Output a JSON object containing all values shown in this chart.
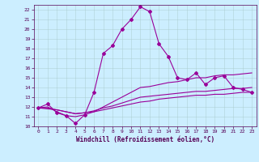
{
  "title": "",
  "xlabel": "Windchill (Refroidissement éolien,°C)",
  "bg_color": "#cceeff",
  "line_color": "#990099",
  "xlim": [
    -0.5,
    23.5
  ],
  "ylim": [
    10,
    22.5
  ],
  "yticks": [
    10,
    11,
    12,
    13,
    14,
    15,
    16,
    17,
    18,
    19,
    20,
    21,
    22
  ],
  "xticks": [
    0,
    1,
    2,
    3,
    4,
    5,
    6,
    7,
    8,
    9,
    10,
    11,
    12,
    13,
    14,
    15,
    16,
    17,
    18,
    19,
    20,
    21,
    22,
    23
  ],
  "series": [
    {
      "x": [
        0,
        1,
        2,
        3,
        4,
        5,
        6,
        7,
        8,
        9,
        10,
        11,
        12,
        13,
        14,
        15,
        16,
        17,
        18,
        19,
        20,
        21,
        22,
        23
      ],
      "y": [
        11.9,
        12.3,
        11.4,
        11.1,
        10.3,
        11.2,
        13.5,
        17.5,
        18.3,
        20.0,
        21.0,
        22.3,
        21.8,
        18.5,
        17.2,
        15.0,
        14.8,
        15.5,
        14.3,
        15.0,
        15.2,
        14.0,
        13.8,
        13.5
      ],
      "marker": "D",
      "markersize": 2.0,
      "linewidth": 0.8,
      "linestyle": "-"
    },
    {
      "x": [
        0,
        1,
        2,
        3,
        4,
        5,
        6,
        7,
        8,
        9,
        10,
        11,
        12,
        13,
        14,
        15,
        16,
        17,
        18,
        19,
        20,
        21,
        22,
        23
      ],
      "y": [
        11.9,
        12.0,
        11.5,
        11.1,
        11.0,
        11.2,
        11.5,
        12.0,
        12.5,
        13.0,
        13.5,
        14.0,
        14.1,
        14.3,
        14.5,
        14.6,
        14.8,
        15.0,
        15.0,
        15.2,
        15.3,
        15.3,
        15.4,
        15.5
      ],
      "marker": null,
      "markersize": 0,
      "linewidth": 0.8,
      "linestyle": "-"
    },
    {
      "x": [
        0,
        1,
        2,
        3,
        4,
        5,
        6,
        7,
        8,
        9,
        10,
        11,
        12,
        13,
        14,
        15,
        16,
        17,
        18,
        19,
        20,
        21,
        22,
        23
      ],
      "y": [
        11.9,
        11.9,
        11.7,
        11.5,
        11.3,
        11.4,
        11.6,
        11.9,
        12.1,
        12.4,
        12.7,
        13.0,
        13.1,
        13.2,
        13.3,
        13.4,
        13.5,
        13.6,
        13.6,
        13.7,
        13.8,
        13.9,
        13.9,
        14.0
      ],
      "marker": null,
      "markersize": 0,
      "linewidth": 0.8,
      "linestyle": "-"
    },
    {
      "x": [
        0,
        1,
        2,
        3,
        4,
        5,
        6,
        7,
        8,
        9,
        10,
        11,
        12,
        13,
        14,
        15,
        16,
        17,
        18,
        19,
        20,
        21,
        22,
        23
      ],
      "y": [
        11.9,
        11.8,
        11.7,
        11.5,
        11.3,
        11.4,
        11.5,
        11.7,
        11.9,
        12.1,
        12.3,
        12.5,
        12.6,
        12.8,
        12.9,
        13.0,
        13.1,
        13.2,
        13.2,
        13.3,
        13.3,
        13.4,
        13.5,
        13.5
      ],
      "marker": null,
      "markersize": 0,
      "linewidth": 0.8,
      "linestyle": "-"
    }
  ]
}
